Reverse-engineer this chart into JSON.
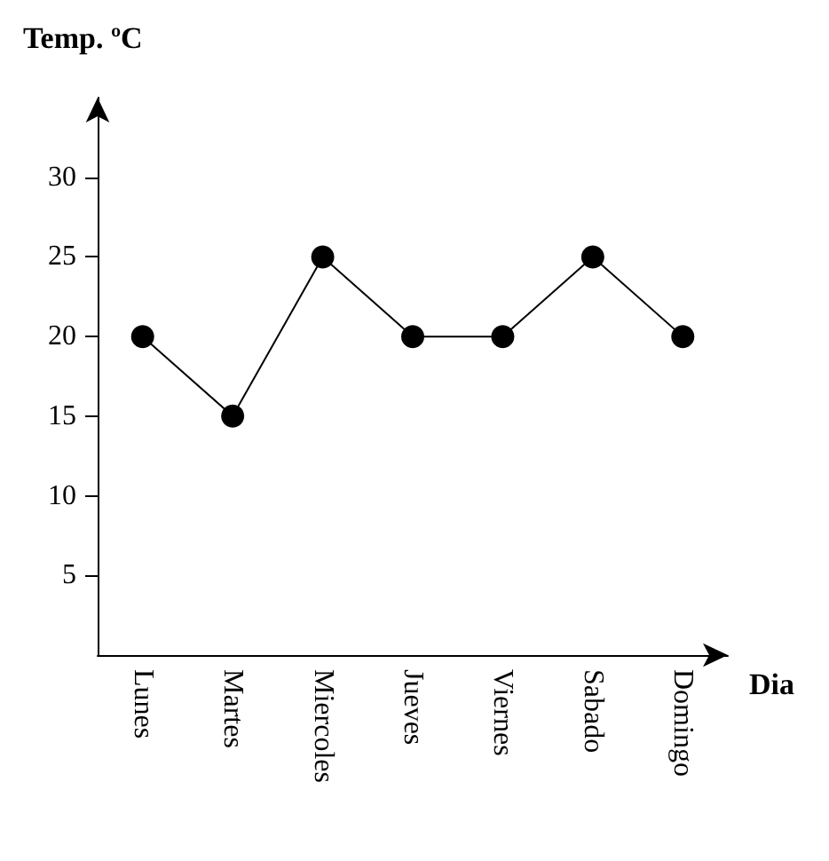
{
  "chart_data": {
    "type": "line",
    "title": "Temp. ºC",
    "xlabel": "Dia",
    "categories": [
      "Lunes",
      "Martes",
      "Miercoles",
      "Jueves",
      "Viernes",
      "Sabado",
      "Domingo"
    ],
    "values": [
      20,
      15,
      25,
      20,
      20,
      25,
      20
    ],
    "color": "#000000",
    "ylim": [
      0,
      35
    ],
    "yticks": [
      5,
      10,
      15,
      20,
      25,
      30
    ],
    "marker": "circle",
    "grid": false
  }
}
